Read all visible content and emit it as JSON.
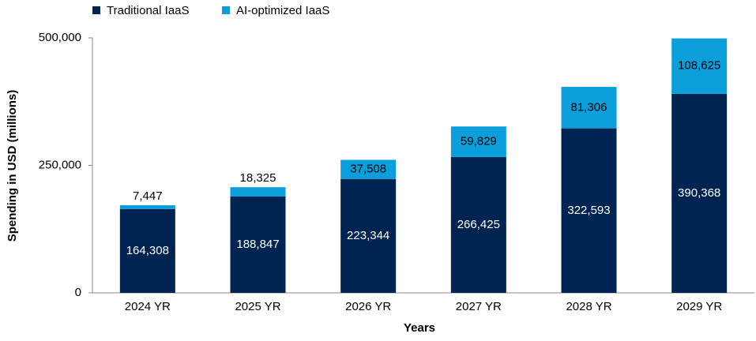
{
  "chart_data": {
    "type": "stacked_bar",
    "x_label": "Years",
    "y_label": "Spending in USD (millions)",
    "categories": [
      "2024 YR",
      "2025 YR",
      "2026 YR",
      "2027 YR",
      "2028 YR",
      "2029 YR"
    ],
    "series": [
      {
        "name": "Traditional IaaS",
        "color": "#002452",
        "values": [
          164308,
          188847,
          223344,
          266425,
          322593,
          390368
        ],
        "value_labels": [
          "164,308",
          "188,847",
          "223,344",
          "266,425",
          "322,593",
          "390,368"
        ]
      },
      {
        "name": "AI-optimized IaaS",
        "color": "#0a9fdb",
        "values": [
          7447,
          18325,
          37508,
          59829,
          81306,
          108625
        ],
        "value_labels": [
          "7,447",
          "18,325",
          "37,508",
          "59,829",
          "81,306",
          "108,625"
        ]
      }
    ],
    "ylim": [
      0,
      500000
    ],
    "yticks": [
      0,
      {
        "value": 250000,
        "label": "250,000"
      },
      {
        "value": 500000,
        "label": "500,000"
      }
    ],
    "legend": "top-left"
  }
}
